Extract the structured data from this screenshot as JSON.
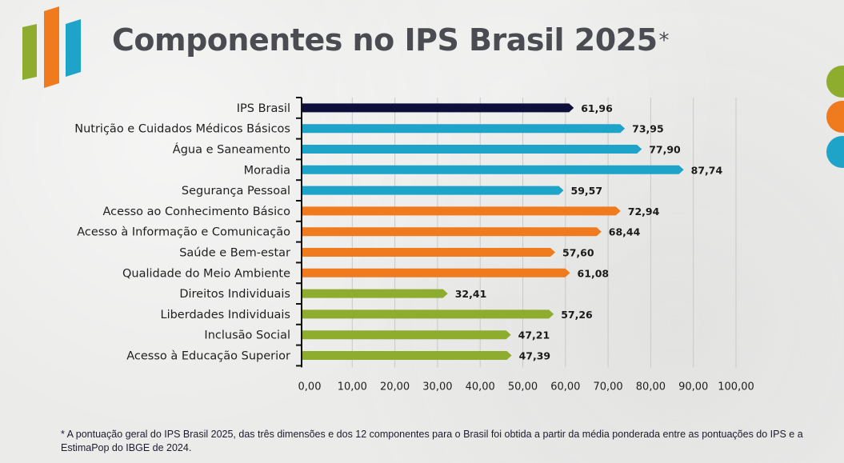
{
  "header": {
    "title": "Componentes no IPS Brasil 2025",
    "title_mark": "*"
  },
  "colors": {
    "navy": "#0d0f3a",
    "blue": "#1ea3c9",
    "orange": "#f07a1e",
    "green": "#8ead2e",
    "text": "#222222",
    "grid": "#c9c9c9"
  },
  "decor": {
    "logo_bars": [
      "green",
      "orange",
      "blue"
    ],
    "side_dots": [
      "green",
      "orange",
      "blue"
    ]
  },
  "chart_data": {
    "type": "bar",
    "orientation": "horizontal",
    "title": "Componentes no IPS Brasil 2025*",
    "xlabel": "",
    "ylabel": "",
    "xlim": [
      0,
      100
    ],
    "grid": true,
    "categories": [
      "IPS Brasil",
      "Nutrição e Cuidados Médicos Básicos",
      "Água e Saneamento",
      "Moradia",
      "Segurança Pessoal",
      "Acesso ao Conhecimento Básico",
      "Acesso à Informação e Comunicação",
      "Saúde e Bem-estar",
      "Qualidade do Meio Ambiente",
      "Direitos Individuais",
      "Liberdades Individuais",
      "Inclusão Social",
      "Acesso à Educação Superior"
    ],
    "values": [
      61.96,
      73.95,
      77.9,
      87.74,
      59.57,
      72.94,
      68.44,
      57.6,
      61.08,
      32.41,
      57.26,
      47.21,
      47.39
    ],
    "value_labels": [
      "61,96",
      "73,95",
      "77,90",
      "87,74",
      "59,57",
      "72,94",
      "68,44",
      "57,60",
      "61,08",
      "32,41",
      "57,26",
      "47,21",
      "47,39"
    ],
    "bar_colors": [
      "navy",
      "blue",
      "blue",
      "blue",
      "blue",
      "orange",
      "orange",
      "orange",
      "orange",
      "green",
      "green",
      "green",
      "green"
    ],
    "xticks": [
      0,
      10,
      20,
      30,
      40,
      50,
      60,
      70,
      80,
      90,
      100
    ],
    "xtick_labels": [
      "0,00",
      "10,00",
      "20,00",
      "30,00",
      "40,00",
      "50,00",
      "60,00",
      "70,00",
      "80,00",
      "90,00",
      "100,00"
    ]
  },
  "footnote": "* A pontuação geral do IPS Brasil 2025, das três dimensões e dos 12 componentes para o Brasil foi obtida a partir da média ponderada entre as pontuações do IPS e a EstimaPop do IBGE de 2024."
}
